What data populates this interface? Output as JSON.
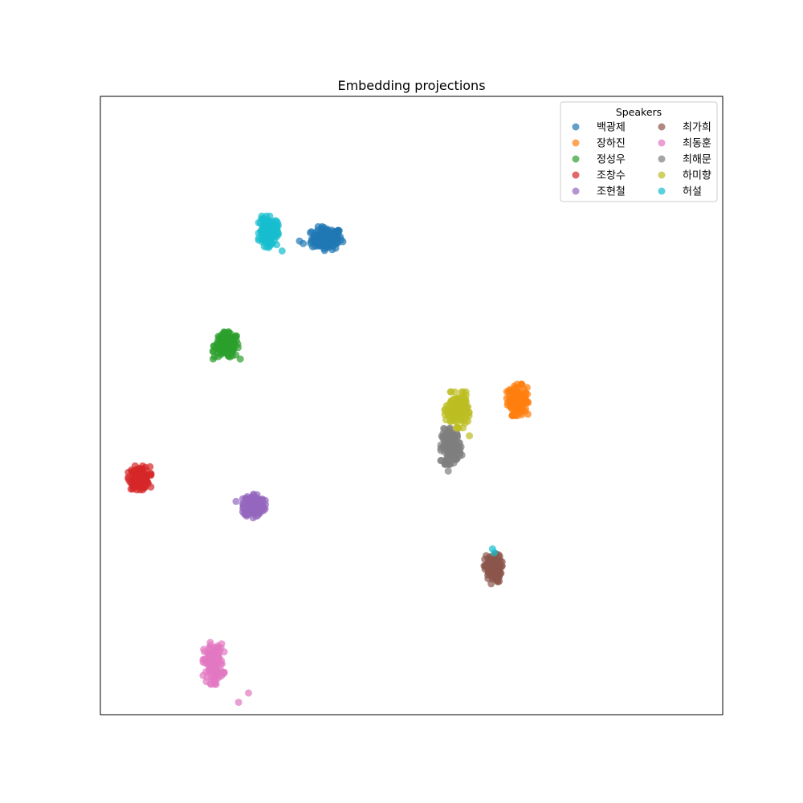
{
  "chart_data": {
    "type": "scatter",
    "title": "Embedding projections",
    "xlabel": "",
    "ylabel": "",
    "xlim": [
      0,
      100
    ],
    "ylim": [
      0,
      100
    ],
    "axis_ticks": false,
    "grid": false,
    "legend": {
      "title": "Speakers",
      "placement": "upper right",
      "columns": 2
    },
    "series": [
      {
        "name": "백광제",
        "color": "#1f77b4",
        "center": [
          36.4,
          77.0
        ],
        "spread": [
          2.2,
          1.6
        ],
        "count": 160,
        "extra": [
          [
            32.0,
            76.6
          ],
          [
            32.6,
            76.2
          ]
        ]
      },
      {
        "name": "장하진",
        "color": "#ff7f0e",
        "center": [
          67.0,
          50.9
        ],
        "spread": [
          1.4,
          2.1
        ],
        "count": 140,
        "extra": []
      },
      {
        "name": "정성우",
        "color": "#2ca02c",
        "center": [
          20.3,
          59.7
        ],
        "spread": [
          1.8,
          1.8
        ],
        "count": 150,
        "extra": []
      },
      {
        "name": "조창수",
        "color": "#d62728",
        "center": [
          6.3,
          38.3
        ],
        "spread": [
          1.5,
          1.6
        ],
        "count": 140,
        "extra": []
      },
      {
        "name": "조현철",
        "color": "#9467bd",
        "center": [
          24.7,
          33.9
        ],
        "spread": [
          1.5,
          1.7
        ],
        "count": 140,
        "extra": [
          [
            21.8,
            34.5
          ]
        ]
      },
      {
        "name": "최가희",
        "color": "#8c564b",
        "center": [
          63.1,
          23.6
        ],
        "spread": [
          1.2,
          2.0
        ],
        "count": 130,
        "extra": []
      },
      {
        "name": "최동훈",
        "color": "#e377c2",
        "center": [
          18.2,
          8.3
        ],
        "spread": [
          1.4,
          2.8
        ],
        "count": 140,
        "extra": [
          [
            23.8,
            3.5
          ],
          [
            22.2,
            2.0
          ]
        ]
      },
      {
        "name": "최해문",
        "color": "#7f7f7f",
        "center": [
          56.4,
          43.4
        ],
        "spread": [
          1.4,
          2.4
        ],
        "count": 150,
        "extra": [
          [
            55.9,
            39.4
          ]
        ]
      },
      {
        "name": "하미향",
        "color": "#bcbd22",
        "center": [
          57.3,
          49.3
        ],
        "spread": [
          1.6,
          2.4
        ],
        "count": 160,
        "extra": [
          [
            59.3,
            45.1
          ]
        ]
      },
      {
        "name": "허설",
        "color": "#17becf",
        "center": [
          27.0,
          78.1
        ],
        "spread": [
          1.3,
          2.1
        ],
        "count": 150,
        "extra": [
          [
            29.2,
            75.0
          ],
          [
            63.3,
            26.2
          ],
          [
            63.0,
            26.8
          ]
        ]
      }
    ]
  }
}
